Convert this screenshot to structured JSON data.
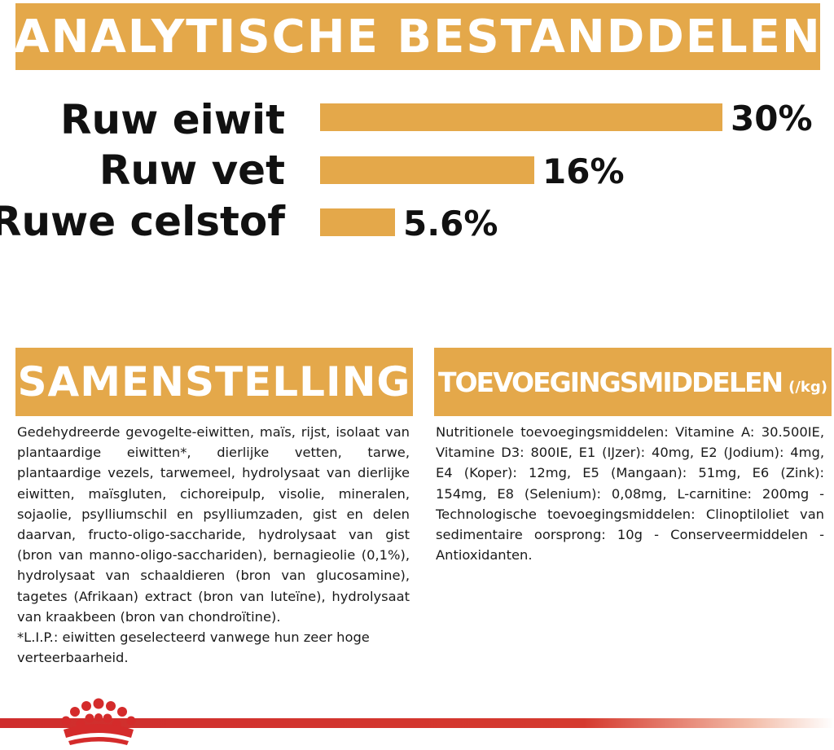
{
  "analytic": {
    "title": "ANALYTISCHE BESTANDDELEN",
    "items": [
      {
        "label": "Ruw eiwit",
        "value": "30%",
        "amount": 30
      },
      {
        "label": "Ruw vet",
        "value": "16%",
        "amount": 16
      },
      {
        "label": "Ruwe celstof",
        "value": "5.6%",
        "amount": 5.6
      }
    ]
  },
  "samenstelling": {
    "title": "SAMENSTELLING",
    "text": "Gedehydreerde gevogelte-eiwitten, maïs, rijst, isolaat van plantaardige eiwitten*, dierlijke vetten, tarwe, plantaardige vezels, tarwemeel, hydrolysaat van dierlijke eiwitten, maïsgluten, cichoreipulp, visolie, mineralen, sojaolie, psylliumschil en psylliumzaden, gist en delen daarvan, fructo-oligo-saccharide, hydrolysaat van gist (bron van manno-oligo-sacchariden), bernagieolie (0,1%), hydrolysaat van schaaldieren (bron van glucosamine), tagetes (Afrikaan) extract (bron van luteïne), hydrolysaat van kraakbeen (bron van chondroïtine).",
    "footnote": "*L.I.P.: eiwitten geselecteerd vanwege hun zeer hoge verteerbaarheid."
  },
  "toevoegingsmiddelen": {
    "title": "TOEVOEGINGSMIDDELEN",
    "unit": "(/kg)",
    "text": "Nutritionele toevoegingsmiddelen: Vitamine A: 30.500IE, Vitamine D3: 800IE, E1 (IJzer): 40mg, E2 (Jodium): 4mg, E4 (Koper): 12mg, E5 (Mangaan): 51mg, E6 (Zink): 154mg, E8 (Selenium): 0,08mg, L-carnitine: 200mg - Technologische toevoegingsmiddelen: Clinoptiloliet van sedimentaire oorsprong: 10g - Conserveermiddelen - Antioxidanten."
  },
  "colors": {
    "accent": "#e4a84a",
    "brand_red": "#cf2d2d"
  },
  "icons": {
    "logo": "royal-canin-crown-icon"
  }
}
